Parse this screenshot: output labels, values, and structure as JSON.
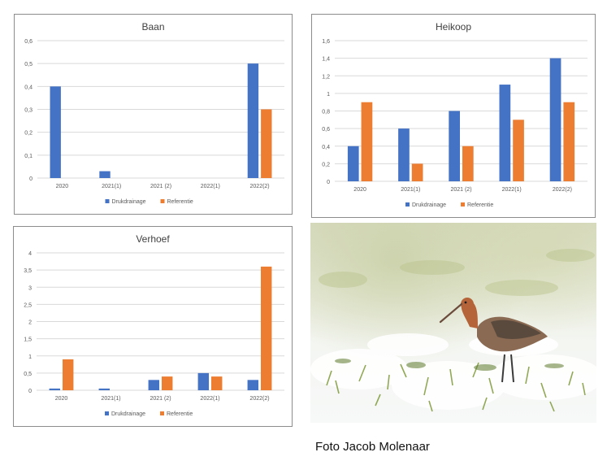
{
  "colors": {
    "drukdrainage": "#4472c4",
    "referentie": "#ed7d31",
    "gridline": "#d9d9d9",
    "axis_text": "#595959"
  },
  "photo": {
    "caption": "Foto Jacob Molenaar",
    "subject_icon": "godwit-bird-in-snowy-meadow-image"
  },
  "chart_data": [
    {
      "type": "bar",
      "title": "Baan",
      "categories": [
        "2020",
        "2021(1)",
        "2021 (2)",
        "2022(1)",
        "2022(2)"
      ],
      "series": [
        {
          "name": "Drukdrainage",
          "values": [
            0.4,
            0.03,
            0,
            0,
            0.5
          ]
        },
        {
          "name": "Referentie",
          "values": [
            0,
            0,
            0,
            0,
            0.3
          ]
        }
      ],
      "ylim": [
        0,
        0.6
      ],
      "yticks": [
        "0",
        "0,1",
        "0,2",
        "0,3",
        "0,4",
        "0,5",
        "0,6"
      ],
      "grid": true,
      "legend": "bottom"
    },
    {
      "type": "bar",
      "title": "Heikoop",
      "categories": [
        "2020",
        "2021(1)",
        "2021 (2)",
        "2022(1)",
        "2022(2)"
      ],
      "series": [
        {
          "name": "Drukdrainage",
          "values": [
            0.4,
            0.6,
            0.8,
            1.1,
            1.4
          ]
        },
        {
          "name": "Referentie",
          "values": [
            0.9,
            0.2,
            0.4,
            0.7,
            0.9
          ]
        }
      ],
      "ylim": [
        0,
        1.6
      ],
      "yticks": [
        "0",
        "0,2",
        "0,4",
        "0,6",
        "0,8",
        "1",
        "1,2",
        "1,4",
        "1,6"
      ],
      "grid": true,
      "legend": "bottom"
    },
    {
      "type": "bar",
      "title": "Verhoef",
      "categories": [
        "2020",
        "2021(1)",
        "2021 (2)",
        "2022(1)",
        "2022(2)"
      ],
      "series": [
        {
          "name": "Drukdrainage",
          "values": [
            0.05,
            0.05,
            0.3,
            0.5,
            0.3
          ]
        },
        {
          "name": "Referentie",
          "values": [
            0.9,
            0,
            0.4,
            0.4,
            3.6
          ]
        }
      ],
      "ylim": [
        0,
        4
      ],
      "yticks": [
        "0",
        "0,5",
        "1",
        "1,5",
        "2",
        "2,5",
        "3",
        "3,5",
        "4"
      ],
      "grid": true,
      "legend": "bottom"
    }
  ]
}
